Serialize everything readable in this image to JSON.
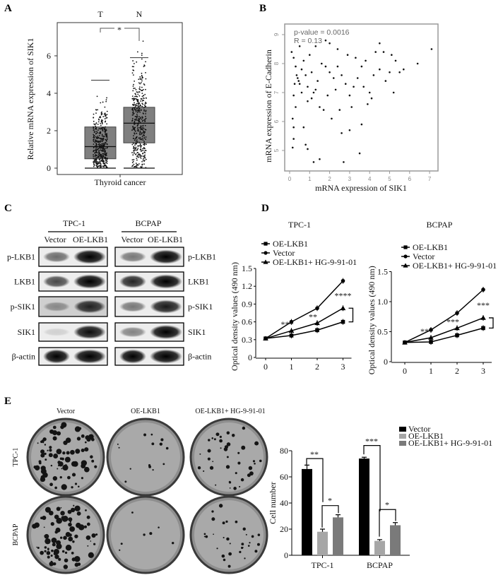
{
  "panels": {
    "A": {
      "letter": "A"
    },
    "B": {
      "letter": "B"
    },
    "C": {
      "letter": "C"
    },
    "D": {
      "letter": "D"
    },
    "E": {
      "letter": "E"
    }
  },
  "chart_data": [
    {
      "panel": "A",
      "type": "box",
      "xlabel": "Thyroid cancer",
      "ylabel": "Relative mRNA expression of SIK1",
      "ylim": [
        0,
        7.4
      ],
      "yticks": [
        "0",
        "2",
        "4",
        "6"
      ],
      "categories": [
        "T",
        "N"
      ],
      "boxes": [
        {
          "name": "T",
          "q1": 0.5,
          "median": 1.15,
          "q3": 2.2,
          "whisker_low": 0,
          "whisker_high": 4.7,
          "color": "#7f7f7f"
        },
        {
          "name": "N",
          "q1": 1.35,
          "median": 2.4,
          "q3": 3.25,
          "whisker_low": 0,
          "whisker_high": 5.9,
          "color": "#7f7f7f"
        }
      ],
      "significance": "*"
    },
    {
      "panel": "B",
      "type": "scatter",
      "xlabel": "mRNA expression of SIK1",
      "ylabel": "mRNA expression of E-Cadherin",
      "xlim": [
        -0.2,
        7.4
      ],
      "ylim": [
        4.3,
        9.3
      ],
      "xticks": [
        "0",
        "1",
        "2",
        "3",
        "4",
        "5",
        "6",
        "7"
      ],
      "yticks": [
        "5",
        "6",
        "7",
        "8",
        "9"
      ],
      "annotation": [
        "p-value = 0.0016",
        "R = 0.13"
      ],
      "points": [
        [
          0.1,
          8.4
        ],
        [
          0.2,
          8.2
        ],
        [
          0.3,
          7.9
        ],
        [
          0.4,
          7.5
        ],
        [
          0.5,
          7.3
        ],
        [
          0.6,
          7.8
        ],
        [
          0.7,
          8.1
        ],
        [
          0.8,
          7.6
        ],
        [
          0.9,
          7.2
        ],
        [
          1.0,
          8.3
        ],
        [
          1.1,
          7.7
        ],
        [
          1.2,
          7.0
        ],
        [
          0.2,
          6.9
        ],
        [
          0.3,
          6.5
        ],
        [
          0.15,
          6.1
        ],
        [
          0.2,
          5.8
        ],
        [
          0.2,
          5.4
        ],
        [
          0.15,
          5.1
        ],
        [
          0.7,
          5.8
        ],
        [
          0.8,
          5.2
        ],
        [
          0.9,
          5.05
        ],
        [
          1.2,
          4.6
        ],
        [
          1.5,
          4.7
        ],
        [
          2.7,
          4.6
        ],
        [
          3.5,
          4.9
        ],
        [
          2.6,
          5.6
        ],
        [
          3.0,
          5.7
        ],
        [
          3.6,
          5.9
        ],
        [
          2.1,
          6.1
        ],
        [
          1.5,
          6.5
        ],
        [
          1.7,
          6.4
        ],
        [
          2.5,
          6.4
        ],
        [
          3.1,
          6.5
        ],
        [
          3.9,
          6.6
        ],
        [
          0.5,
          8.6
        ],
        [
          1.3,
          8.6
        ],
        [
          2.0,
          8.7
        ],
        [
          2.4,
          8.5
        ],
        [
          1.8,
          8.8
        ],
        [
          2.9,
          8.3
        ],
        [
          3.3,
          8.2
        ],
        [
          4.3,
          8.4
        ],
        [
          4.5,
          8.7
        ],
        [
          4.7,
          8.4
        ],
        [
          5.1,
          8.3
        ],
        [
          5.3,
          8.1
        ],
        [
          5.7,
          7.8
        ],
        [
          6.4,
          8.0
        ],
        [
          7.1,
          8.5
        ],
        [
          5.2,
          7.0
        ],
        [
          4.8,
          7.4
        ],
        [
          4.5,
          7.8
        ],
        [
          4.2,
          7.6
        ],
        [
          3.8,
          8.1
        ],
        [
          3.6,
          7.9
        ],
        [
          3.4,
          7.5
        ],
        [
          3.2,
          7.2
        ],
        [
          3.0,
          6.9
        ],
        [
          2.8,
          7.3
        ],
        [
          2.6,
          7.6
        ],
        [
          2.4,
          7.9
        ],
        [
          2.2,
          7.5
        ],
        [
          2.0,
          7.7
        ],
        [
          1.8,
          7.9
        ],
        [
          1.6,
          8.0
        ],
        [
          1.4,
          7.4
        ],
        [
          1.3,
          7.1
        ],
        [
          1.1,
          6.8
        ],
        [
          0.9,
          6.7
        ],
        [
          0.6,
          7.0
        ],
        [
          0.45,
          7.4
        ],
        [
          0.35,
          7.6
        ],
        [
          0.25,
          7.3
        ],
        [
          4.0,
          7.0
        ],
        [
          4.1,
          6.8
        ],
        [
          3.7,
          7.2
        ],
        [
          5.0,
          7.7
        ],
        [
          5.5,
          7.7
        ],
        [
          2.3,
          7.1
        ],
        [
          1.9,
          6.9
        ]
      ]
    },
    {
      "panel": "D-TPC-1",
      "type": "line",
      "title": "TPC-1",
      "ylabel": "Optical density values (490 nm)",
      "x": [
        0,
        1,
        2,
        3
      ],
      "ylim": [
        0,
        1.5
      ],
      "yticks": [
        "0",
        "0.3",
        "0.6",
        "0.9",
        "1.2",
        "1.5"
      ],
      "xticks": [
        "0",
        "1",
        "2",
        "3"
      ],
      "series": [
        {
          "name": "OE-LKB1",
          "marker": "square",
          "values": [
            0.32,
            0.37,
            0.46,
            0.6
          ]
        },
        {
          "name": "Vector",
          "marker": "circle",
          "values": [
            0.32,
            0.6,
            0.83,
            1.29
          ]
        },
        {
          "name": "OE-LKB1+ HG-9-91-01",
          "marker": "triangle",
          "values": [
            0.32,
            0.45,
            0.58,
            0.83
          ]
        }
      ],
      "significance": [
        "***",
        "**",
        "****"
      ]
    },
    {
      "panel": "D-BCPAP",
      "type": "line",
      "title": "BCPAP",
      "ylabel": "Optical density values (490 nm)",
      "x": [
        0,
        1,
        2,
        3
      ],
      "ylim": [
        0,
        1.5
      ],
      "yticks": [
        "0",
        "0.5",
        "1.0",
        "1.5"
      ],
      "xticks": [
        "0",
        "1",
        "2",
        "3"
      ],
      "series": [
        {
          "name": "OE-LKB1",
          "marker": "square",
          "values": [
            0.32,
            0.33,
            0.44,
            0.56
          ]
        },
        {
          "name": "Vector",
          "marker": "circle",
          "values": [
            0.32,
            0.53,
            0.81,
            1.2
          ]
        },
        {
          "name": "OE-LKB1+ HG-9-91-01",
          "marker": "triangle",
          "values": [
            0.32,
            0.4,
            0.56,
            0.73
          ]
        }
      ],
      "significance": [
        "***",
        "***",
        "***"
      ]
    },
    {
      "panel": "E",
      "type": "bar",
      "ylabel": "Cell number",
      "categories": [
        "TPC-1",
        "BCPAP"
      ],
      "ylim": [
        0,
        80
      ],
      "yticks": [
        "0",
        "20",
        "40",
        "60",
        "80"
      ],
      "series": [
        {
          "name": "Vector",
          "color": "#000000",
          "values": [
            66,
            74
          ],
          "errors": [
            3,
            1
          ]
        },
        {
          "name": "OE-LKB1",
          "color": "#a6a6a6",
          "values": [
            18,
            11
          ],
          "errors": [
            2,
            1
          ]
        },
        {
          "name": "OE-LKB1+ HG-9-91-01",
          "color": "#7a7a7a",
          "values": [
            29,
            23
          ],
          "errors": [
            2,
            2
          ]
        }
      ],
      "significance": [
        [
          "**",
          "*"
        ],
        [
          "***",
          "*"
        ]
      ]
    }
  ],
  "western_blot": {
    "groups": [
      {
        "name": "TPC-1",
        "lanes": [
          "Vector",
          "OE-LKB1"
        ]
      },
      {
        "name": "BCPAP",
        "lanes": [
          "Vector",
          "OE-LKB1"
        ]
      }
    ],
    "proteins": [
      "p-LKB1",
      "LKB1",
      "p-SIK1",
      "SIK1",
      "β-actin"
    ],
    "band_intensity": {
      "TPC-1": [
        [
          0.55,
          1.0
        ],
        [
          0.7,
          1.0
        ],
        [
          0.35,
          0.85
        ],
        [
          0.12,
          0.95
        ],
        [
          1.0,
          1.0
        ]
      ],
      "BCPAP": [
        [
          0.5,
          1.0
        ],
        [
          0.85,
          1.0
        ],
        [
          0.5,
          0.9
        ],
        [
          0.45,
          1.0
        ],
        [
          1.0,
          1.0
        ]
      ]
    }
  },
  "colony_assay": {
    "columns": [
      "Vector",
      "OE-LKB1",
      "OE-LKB1+ HG-9-91-01"
    ],
    "rows": [
      "TPC-1",
      "BCPAP"
    ],
    "colony_density": [
      [
        0.9,
        0.15,
        0.45
      ],
      [
        0.95,
        0.08,
        0.35
      ]
    ]
  }
}
